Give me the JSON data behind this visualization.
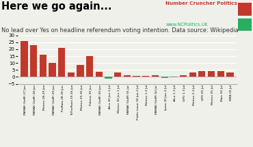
{
  "title": "Here we go again...",
  "subtitle": "No lead over Yes on headline referendum voting intention. Data source: Wikipedia",
  "brand_name": "Number Cruncher Politics",
  "brand_url": "www.NCPolitics.UK",
  "categories": [
    "PAMAK (UoM) 27 Jun",
    "PAMAK (UoM) 28 Jun",
    "Metron 28-29 Jun",
    "PAMAK (UoM) 29 Jun",
    "ProRata 28-30 Jun",
    "ToThePaint 29-30 Jun",
    "Metron 29-30 Jun",
    "Palmos 30 Jun",
    "PAMAK (UoM) 30 Jun",
    "Alco 30 Jun-1 Jul",
    "Metron 30 Jun-1 Jul",
    "PAMAK (UoM) 01 Jul",
    "Public Issue 30 Jun-2 Jul",
    "Metron 1-2 Jul",
    "PAMAK (UoM) 02 Jul",
    "Ipsos 30 Jun-3 Jul",
    "Alco 1-3 Jul",
    "GPO 1-3 Jul",
    "Metron 2-3 Jul",
    "GPO 05 Jul",
    "Metron 05 Jul",
    "Marc 05 Jul",
    "MRB 05 Jul"
  ],
  "values": [
    26,
    23,
    16,
    10,
    21,
    3,
    8.5,
    15,
    3.5,
    -1.5,
    3,
    1,
    0.5,
    0.5,
    1,
    -1,
    -0.5,
    1,
    3,
    4,
    4,
    4,
    3
  ],
  "bar_color_positive": "#c0392b",
  "bar_color_negative": "#27ae60",
  "background_color": "#f0f0eb",
  "ylim": [
    -5,
    30
  ],
  "yticks": [
    -5,
    0,
    5,
    10,
    15,
    20,
    25,
    30
  ],
  "title_fontsize": 10.5,
  "subtitle_fontsize": 6.0,
  "brand_color": "#c0392b",
  "brand_url_color": "#27ae60"
}
